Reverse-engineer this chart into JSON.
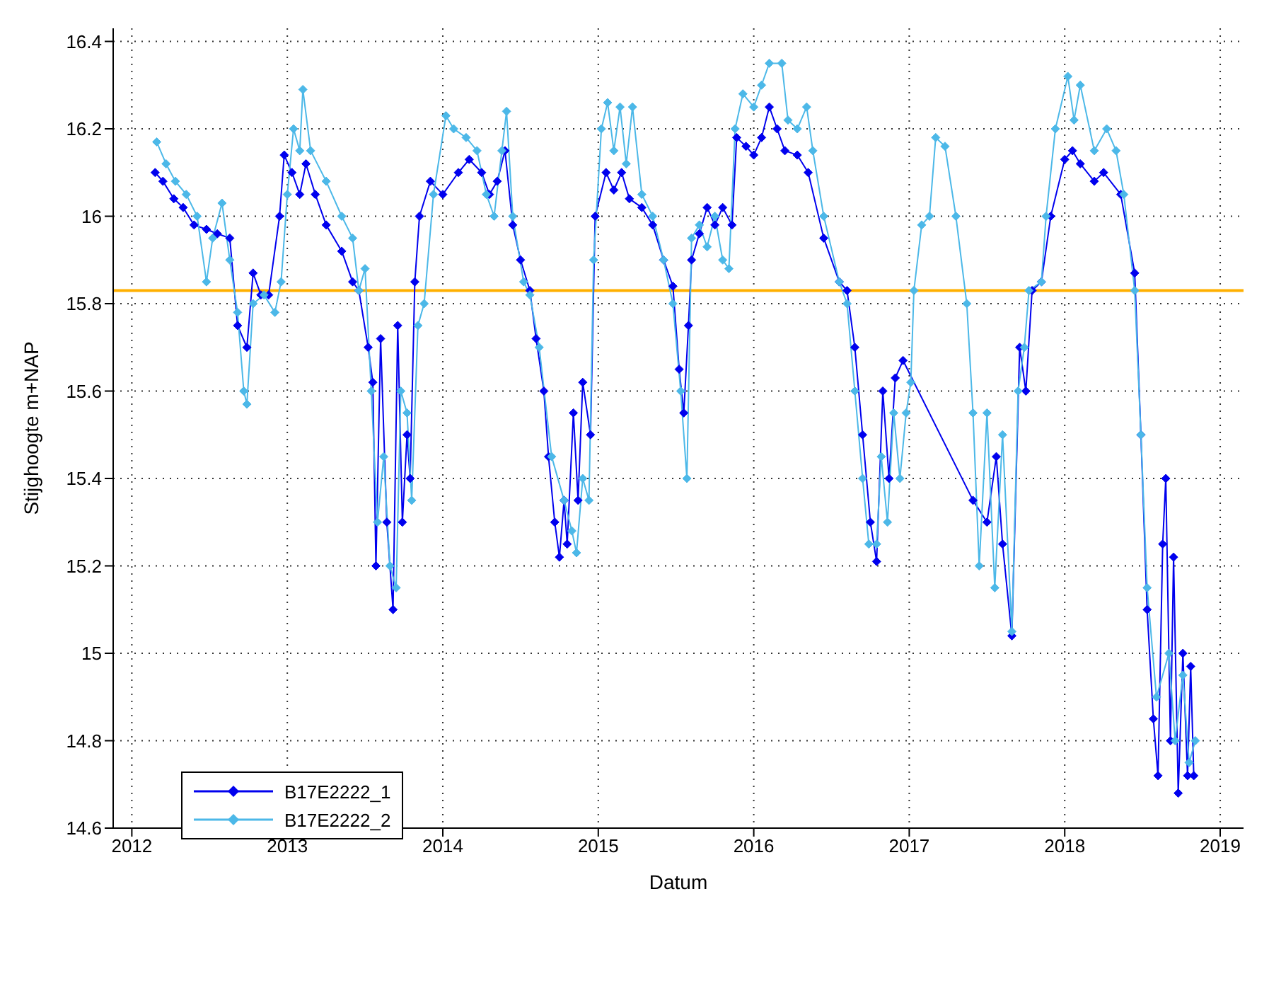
{
  "chart_data": {
    "type": "line",
    "xlabel": "Datum",
    "ylabel": "Stijghoogte m+NAP",
    "xlim": [
      2011.88,
      2019.15
    ],
    "xticks": [
      2012,
      2013,
      2014,
      2015,
      2016,
      2017,
      2018,
      2019
    ],
    "ylim": [
      14.6,
      16.43
    ],
    "yticks": [
      14.6,
      14.8,
      15,
      15.2,
      15.4,
      15.6,
      15.8,
      16,
      16.2,
      16.4
    ],
    "grid": true,
    "legend": "bottom left",
    "marker": "diamond",
    "line_style": "solid",
    "ref_lines": [
      {
        "axis": "y",
        "value": 15.83,
        "label": null,
        "color": "#ffb000"
      }
    ],
    "series": [
      {
        "name": "B17E2222_1",
        "color": "#0000ee",
        "x": [
          2012.15,
          2012.2,
          2012.27,
          2012.33,
          2012.4,
          2012.48,
          2012.55,
          2012.63,
          2012.68,
          2012.74,
          2012.78,
          2012.83,
          2012.88,
          2012.95,
          2012.98,
          2013.03,
          2013.08,
          2013.12,
          2013.18,
          2013.25,
          2013.35,
          2013.42,
          2013.46,
          2013.52,
          2013.55,
          2013.57,
          2013.6,
          2013.64,
          2013.68,
          2013.71,
          2013.74,
          2013.77,
          2013.79,
          2013.82,
          2013.85,
          2013.92,
          2014.0,
          2014.1,
          2014.17,
          2014.25,
          2014.3,
          2014.35,
          2014.4,
          2014.45,
          2014.5,
          2014.56,
          2014.6,
          2014.65,
          2014.68,
          2014.72,
          2014.75,
          2014.78,
          2014.8,
          2014.84,
          2014.87,
          2014.9,
          2014.95,
          2014.98,
          2015.05,
          2015.1,
          2015.15,
          2015.2,
          2015.28,
          2015.35,
          2015.42,
          2015.48,
          2015.52,
          2015.55,
          2015.58,
          2015.6,
          2015.65,
          2015.7,
          2015.75,
          2015.8,
          2015.86,
          2015.89,
          2015.95,
          2016.0,
          2016.05,
          2016.1,
          2016.15,
          2016.2,
          2016.28,
          2016.35,
          2016.45,
          2016.55,
          2016.6,
          2016.65,
          2016.7,
          2016.75,
          2016.79,
          2016.83,
          2016.87,
          2016.91,
          2016.96,
          2017.41,
          2017.5,
          2017.56,
          2017.6,
          2017.66,
          2017.71,
          2017.75,
          2017.79,
          2017.85,
          2017.91,
          2018.0,
          2018.05,
          2018.1,
          2018.19,
          2018.25,
          2018.36,
          2018.45,
          2018.49,
          2018.53,
          2018.57,
          2018.6,
          2018.63,
          2018.65,
          2018.68,
          2018.7,
          2018.73,
          2018.76,
          2018.79,
          2018.81,
          2018.83
        ],
        "values": [
          16.1,
          16.08,
          16.04,
          16.02,
          15.98,
          15.97,
          15.96,
          15.95,
          15.75,
          15.7,
          15.87,
          15.82,
          15.82,
          16.0,
          16.14,
          16.1,
          16.05,
          16.12,
          16.05,
          15.98,
          15.92,
          15.85,
          15.83,
          15.7,
          15.62,
          15.2,
          15.72,
          15.3,
          15.1,
          15.75,
          15.3,
          15.5,
          15.4,
          15.85,
          16.0,
          16.08,
          16.05,
          16.1,
          16.13,
          16.1,
          16.05,
          16.08,
          16.15,
          15.98,
          15.9,
          15.83,
          15.72,
          15.6,
          15.45,
          15.3,
          15.22,
          15.35,
          15.25,
          15.55,
          15.35,
          15.62,
          15.5,
          16.0,
          16.1,
          16.06,
          16.1,
          16.04,
          16.02,
          15.98,
          15.9,
          15.84,
          15.65,
          15.55,
          15.75,
          15.9,
          15.96,
          16.02,
          15.98,
          16.02,
          15.98,
          16.18,
          16.16,
          16.14,
          16.18,
          16.25,
          16.2,
          16.15,
          16.14,
          16.1,
          15.95,
          15.85,
          15.83,
          15.7,
          15.5,
          15.3,
          15.21,
          15.6,
          15.4,
          15.63,
          15.67,
          15.35,
          15.3,
          15.45,
          15.25,
          15.04,
          15.7,
          15.6,
          15.83,
          15.85,
          16.0,
          16.13,
          16.15,
          16.12,
          16.08,
          16.1,
          16.05,
          15.87,
          15.5,
          15.1,
          14.85,
          14.72,
          15.25,
          15.4,
          14.8,
          15.22,
          14.68,
          15.0,
          14.72,
          14.97,
          14.72
        ]
      },
      {
        "name": "B17E2222_2",
        "color": "#4cb8e8",
        "x": [
          2012.16,
          2012.22,
          2012.28,
          2012.35,
          2012.42,
          2012.48,
          2012.52,
          2012.58,
          2012.63,
          2012.68,
          2012.72,
          2012.74,
          2012.78,
          2012.85,
          2012.92,
          2012.96,
          2013.0,
          2013.04,
          2013.08,
          2013.1,
          2013.15,
          2013.25,
          2013.35,
          2013.42,
          2013.46,
          2013.5,
          2013.54,
          2013.58,
          2013.62,
          2013.66,
          2013.7,
          2013.73,
          2013.77,
          2013.8,
          2013.84,
          2013.88,
          2013.94,
          2014.02,
          2014.07,
          2014.15,
          2014.22,
          2014.28,
          2014.33,
          2014.38,
          2014.41,
          2014.45,
          2014.52,
          2014.56,
          2014.62,
          2014.7,
          2014.78,
          2014.83,
          2014.86,
          2014.9,
          2014.94,
          2014.97,
          2015.02,
          2015.06,
          2015.1,
          2015.14,
          2015.18,
          2015.22,
          2015.28,
          2015.35,
          2015.42,
          2015.48,
          2015.53,
          2015.57,
          2015.6,
          2015.65,
          2015.7,
          2015.75,
          2015.8,
          2015.84,
          2015.88,
          2015.93,
          2016.0,
          2016.05,
          2016.1,
          2016.18,
          2016.22,
          2016.28,
          2016.34,
          2016.38,
          2016.45,
          2016.55,
          2016.6,
          2016.65,
          2016.7,
          2016.74,
          2016.79,
          2016.82,
          2016.86,
          2016.9,
          2016.94,
          2016.98,
          2017.01,
          2017.03,
          2017.08,
          2017.13,
          2017.17,
          2017.23,
          2017.3,
          2017.37,
          2017.41,
          2017.45,
          2017.5,
          2017.55,
          2017.6,
          2017.66,
          2017.7,
          2017.74,
          2017.77,
          2017.85,
          2017.88,
          2017.94,
          2018.02,
          2018.06,
          2018.1,
          2018.19,
          2018.27,
          2018.33,
          2018.38,
          2018.45,
          2018.49,
          2018.53,
          2018.59,
          2018.67,
          2018.71,
          2018.76,
          2018.8,
          2018.84
        ],
        "values": [
          16.17,
          16.12,
          16.08,
          16.05,
          16.0,
          15.85,
          15.95,
          16.03,
          15.9,
          15.78,
          15.6,
          15.57,
          15.8,
          15.82,
          15.78,
          15.85,
          16.05,
          16.2,
          16.15,
          16.29,
          16.15,
          16.08,
          16.0,
          15.95,
          15.83,
          15.88,
          15.6,
          15.3,
          15.45,
          15.2,
          15.15,
          15.6,
          15.55,
          15.35,
          15.75,
          15.8,
          16.05,
          16.23,
          16.2,
          16.18,
          16.15,
          16.05,
          16.0,
          16.15,
          16.24,
          16.0,
          15.85,
          15.82,
          15.7,
          15.45,
          15.35,
          15.28,
          15.23,
          15.4,
          15.35,
          15.9,
          16.2,
          16.26,
          16.15,
          16.25,
          16.12,
          16.25,
          16.05,
          16.0,
          15.9,
          15.8,
          15.6,
          15.4,
          15.95,
          15.98,
          15.93,
          16.0,
          15.9,
          15.88,
          16.2,
          16.28,
          16.25,
          16.3,
          16.35,
          16.35,
          16.22,
          16.2,
          16.25,
          16.15,
          16.0,
          15.85,
          15.8,
          15.6,
          15.4,
          15.25,
          15.25,
          15.45,
          15.3,
          15.55,
          15.4,
          15.55,
          15.62,
          15.83,
          15.98,
          16.0,
          16.18,
          16.16,
          16.0,
          15.8,
          15.55,
          15.2,
          15.55,
          15.15,
          15.5,
          15.05,
          15.6,
          15.7,
          15.83,
          15.85,
          16.0,
          16.2,
          16.32,
          16.22,
          16.3,
          16.15,
          16.2,
          16.15,
          16.05,
          15.83,
          15.5,
          15.15,
          14.9,
          15.0,
          14.8,
          14.95,
          14.75,
          14.8
        ]
      }
    ]
  }
}
